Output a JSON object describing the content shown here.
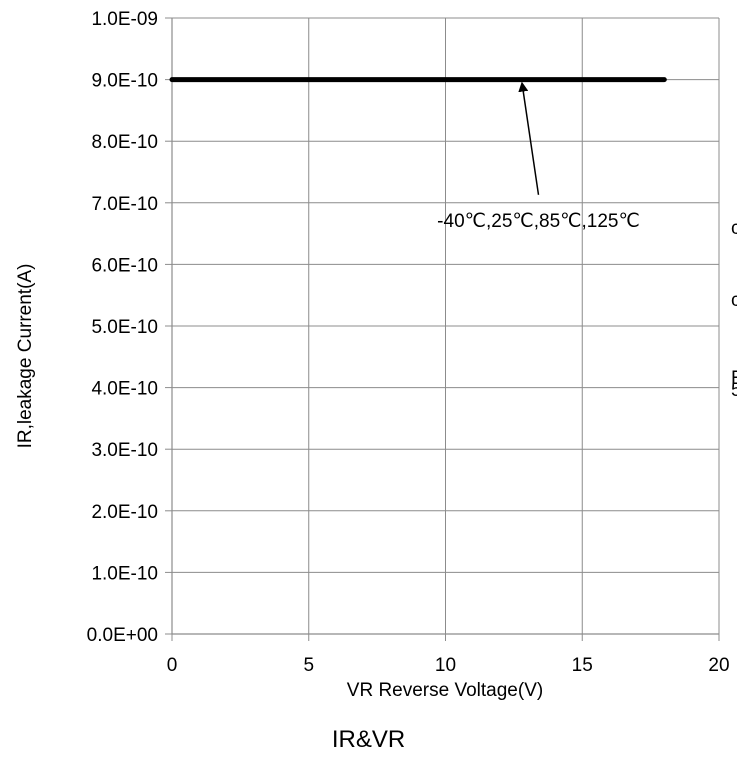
{
  "chart_data": {
    "type": "line",
    "title": "IR&VR",
    "xlabel": "VR Reverse Voltage(V)",
    "ylabel": "IR,leakage Current(A)",
    "xlim": [
      0,
      20
    ],
    "ylim": [
      0,
      1e-09
    ],
    "x_ticks": [
      "0",
      "5",
      "10",
      "15",
      "20"
    ],
    "x_tick_values": [
      0,
      5,
      10,
      15,
      20
    ],
    "y_ticks": [
      "0.0E+00",
      "1.0E-10",
      "2.0E-10",
      "3.0E-10",
      "4.0E-10",
      "5.0E-10",
      "6.0E-10",
      "7.0E-10",
      "8.0E-10",
      "9.0E-10",
      "1.0E-09"
    ],
    "y_tick_values": [
      0,
      1e-10,
      2e-10,
      3e-10,
      4e-10,
      5e-10,
      6e-10,
      7e-10,
      8e-10,
      9e-10,
      1e-09
    ],
    "grid": true,
    "series": [
      {
        "x": [
          0,
          18
        ],
        "y": [
          9e-10,
          9e-10
        ],
        "color": "#000000"
      }
    ],
    "annotation": {
      "text": "-40℃,25℃,85℃,125℃",
      "arrow_target": {
        "x": 12.8,
        "y": 9e-10
      },
      "text_anchor_point": {
        "x": 13.4,
        "y": 7e-10
      }
    }
  },
  "edge_fragments": [
    "c",
    "c",
    "E",
    "5"
  ]
}
